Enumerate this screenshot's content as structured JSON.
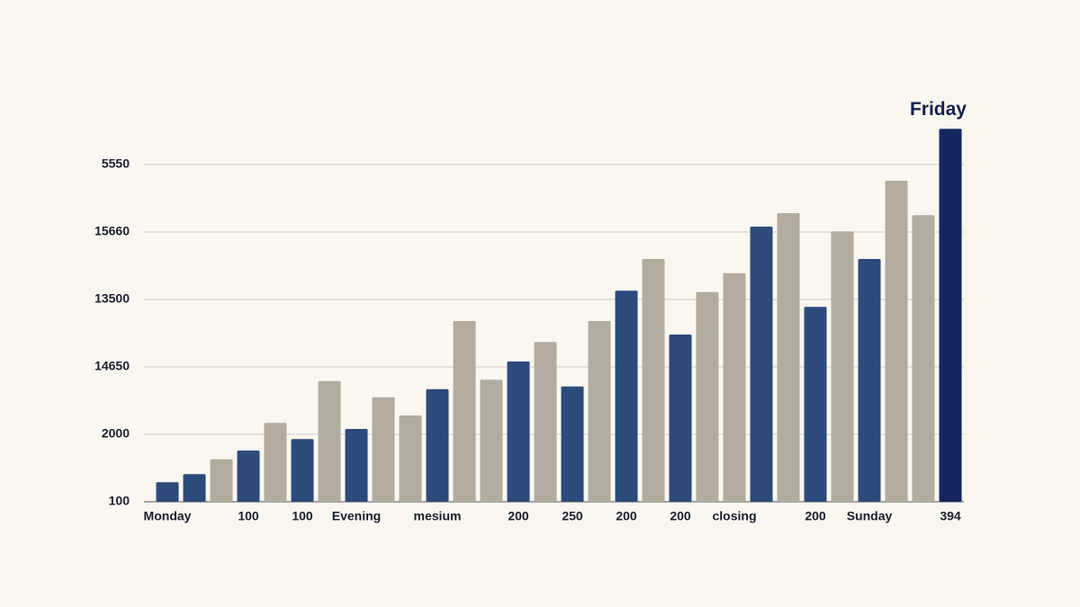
{
  "chart_data": {
    "type": "bar",
    "annotation": "Friday",
    "categories": [
      "Monday",
      null,
      null,
      "100",
      null,
      "100",
      null,
      "Evening",
      null,
      null,
      "mesium",
      null,
      null,
      "200",
      null,
      "250",
      null,
      "200",
      null,
      "200",
      null,
      "closing",
      null,
      null,
      "200",
      null,
      "Sunday",
      null,
      null,
      "394"
    ],
    "values": [
      0.29,
      0.41,
      0.63,
      0.76,
      1.17,
      0.93,
      1.79,
      1.08,
      1.55,
      1.28,
      1.67,
      2.68,
      1.81,
      2.08,
      2.37,
      1.71,
      2.68,
      3.13,
      3.6,
      2.48,
      3.11,
      3.39,
      4.08,
      4.28,
      2.89,
      4.01,
      3.6,
      4.76,
      4.25,
      5.53
    ],
    "colors": [
      "#2c4a7c",
      "#2c4a7c",
      "#b2aca0",
      "#2c4a7c",
      "#b2aca0",
      "#2c4a7c",
      "#b2aca0",
      "#2c4a7c",
      "#b2aca0",
      "#b2aca0",
      "#2c4a7c",
      "#b2aca0",
      "#b2aca0",
      "#2c4a7c",
      "#b2aca0",
      "#2c4a7c",
      "#b2aca0",
      "#2c4a7c",
      "#b2aca0",
      "#2c4a7c",
      "#b2aca0",
      "#b2aca0",
      "#2c4a7c",
      "#b2aca0",
      "#2c4a7c",
      "#b2aca0",
      "#2c4a7c",
      "#b2aca0",
      "#b2aca0",
      "#13275e"
    ],
    "ylim": [
      0,
      5.6
    ],
    "yticks": [
      {
        "value": 0,
        "label": "100"
      },
      {
        "value": 1,
        "label": "2000"
      },
      {
        "value": 2,
        "label": "14650"
      },
      {
        "value": 3,
        "label": "13500"
      },
      {
        "value": 4,
        "label": "15660"
      },
      {
        "value": 5,
        "label": "5550"
      }
    ],
    "grid": true
  }
}
